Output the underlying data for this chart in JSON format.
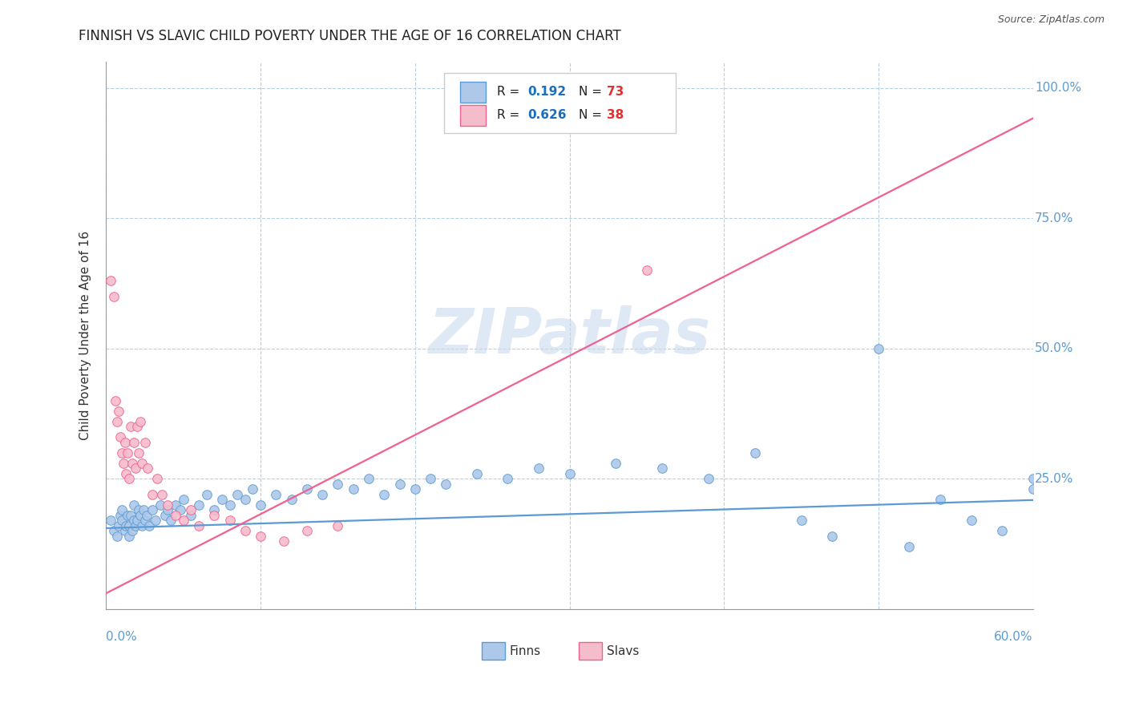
{
  "title": "FINNISH VS SLAVIC CHILD POVERTY UNDER THE AGE OF 16 CORRELATION CHART",
  "source": "Source: ZipAtlas.com",
  "ylabel": "Child Poverty Under the Age of 16",
  "xmin": 0.0,
  "xmax": 0.6,
  "ymin": 0.0,
  "ymax": 1.05,
  "finn_color": "#adc8e8",
  "slav_color": "#f5bccb",
  "finn_line_color": "#5b9bd5",
  "slav_line_color": "#f06090",
  "finn_R": 0.192,
  "finn_N": 73,
  "slav_R": 0.626,
  "slav_N": 38,
  "watermark": "ZIPatlas",
  "legend_R_color": "#1a6fbd",
  "legend_N_color": "#e03030",
  "grid_color": "#b8cfe0",
  "ytick_color": "#5b9bd5",
  "finn_slope": 0.09,
  "finn_intercept": 0.155,
  "slav_slope": 1.52,
  "slav_intercept": 0.03,
  "finns_x": [
    0.003,
    0.005,
    0.007,
    0.008,
    0.009,
    0.01,
    0.01,
    0.012,
    0.013,
    0.014,
    0.015,
    0.015,
    0.016,
    0.017,
    0.018,
    0.018,
    0.019,
    0.02,
    0.021,
    0.022,
    0.023,
    0.024,
    0.025,
    0.026,
    0.028,
    0.03,
    0.032,
    0.035,
    0.038,
    0.04,
    0.042,
    0.045,
    0.048,
    0.05,
    0.055,
    0.06,
    0.065,
    0.07,
    0.075,
    0.08,
    0.085,
    0.09,
    0.095,
    0.1,
    0.11,
    0.12,
    0.13,
    0.14,
    0.15,
    0.16,
    0.17,
    0.18,
    0.19,
    0.2,
    0.21,
    0.22,
    0.24,
    0.26,
    0.28,
    0.3,
    0.33,
    0.36,
    0.39,
    0.42,
    0.45,
    0.47,
    0.5,
    0.52,
    0.54,
    0.56,
    0.58,
    0.6,
    0.6
  ],
  "finns_y": [
    0.17,
    0.15,
    0.14,
    0.16,
    0.18,
    0.17,
    0.19,
    0.15,
    0.16,
    0.18,
    0.14,
    0.16,
    0.18,
    0.15,
    0.17,
    0.2,
    0.16,
    0.17,
    0.19,
    0.18,
    0.16,
    0.19,
    0.17,
    0.18,
    0.16,
    0.19,
    0.17,
    0.2,
    0.18,
    0.19,
    0.17,
    0.2,
    0.19,
    0.21,
    0.18,
    0.2,
    0.22,
    0.19,
    0.21,
    0.2,
    0.22,
    0.21,
    0.23,
    0.2,
    0.22,
    0.21,
    0.23,
    0.22,
    0.24,
    0.23,
    0.25,
    0.22,
    0.24,
    0.23,
    0.25,
    0.24,
    0.26,
    0.25,
    0.27,
    0.26,
    0.28,
    0.27,
    0.25,
    0.3,
    0.17,
    0.14,
    0.5,
    0.12,
    0.21,
    0.17,
    0.15,
    0.23,
    0.25
  ],
  "slavs_x": [
    0.003,
    0.005,
    0.006,
    0.007,
    0.008,
    0.009,
    0.01,
    0.011,
    0.012,
    0.013,
    0.014,
    0.015,
    0.016,
    0.017,
    0.018,
    0.019,
    0.02,
    0.021,
    0.022,
    0.023,
    0.025,
    0.027,
    0.03,
    0.033,
    0.036,
    0.04,
    0.045,
    0.05,
    0.055,
    0.06,
    0.07,
    0.08,
    0.09,
    0.1,
    0.115,
    0.13,
    0.15,
    0.35
  ],
  "slavs_y": [
    0.63,
    0.6,
    0.4,
    0.36,
    0.38,
    0.33,
    0.3,
    0.28,
    0.32,
    0.26,
    0.3,
    0.25,
    0.35,
    0.28,
    0.32,
    0.27,
    0.35,
    0.3,
    0.36,
    0.28,
    0.32,
    0.27,
    0.22,
    0.25,
    0.22,
    0.2,
    0.18,
    0.17,
    0.19,
    0.16,
    0.18,
    0.17,
    0.15,
    0.14,
    0.13,
    0.15,
    0.16,
    0.65
  ]
}
